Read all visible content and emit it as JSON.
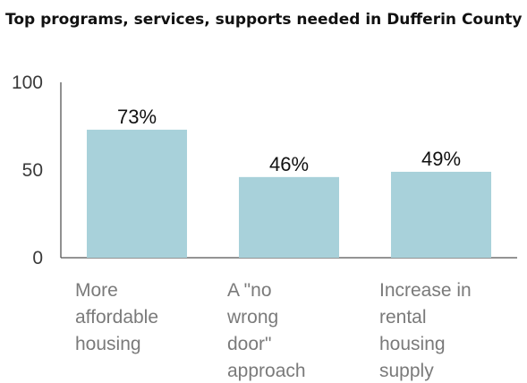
{
  "chart_data": {
    "type": "bar",
    "title": "Top programs, services, supports needed in Dufferin County",
    "categories": [
      [
        "More",
        "affordable",
        "housing"
      ],
      [
        "A \"no",
        "wrong",
        "door\"",
        "approach"
      ],
      [
        "Increase in",
        "rental",
        "housing",
        "supply"
      ]
    ],
    "values": [
      73,
      46,
      49
    ],
    "data_labels": [
      "73%",
      "46%",
      "49%"
    ],
    "xlabel": "",
    "ylabel": "",
    "ylim": [
      0,
      100
    ],
    "yticks": [
      0,
      50,
      100
    ],
    "grid": false,
    "colors": {
      "bar": "#a8d1da",
      "axis": "#555555",
      "title": "#111111"
    }
  }
}
